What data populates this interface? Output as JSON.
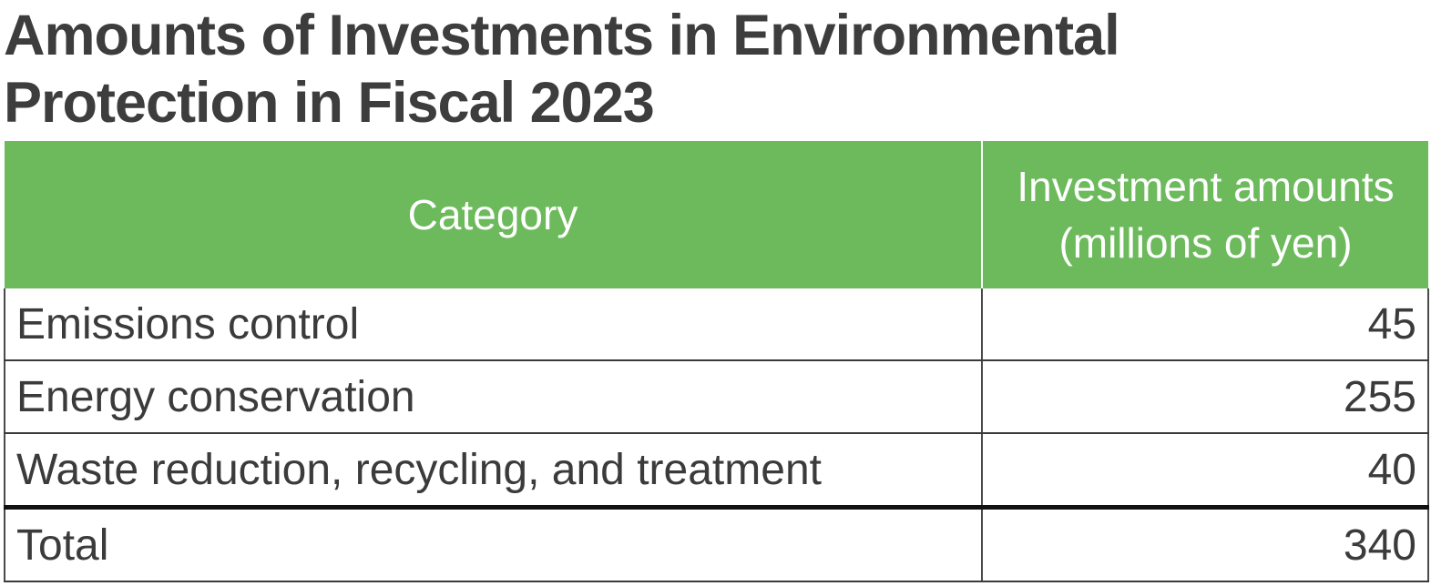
{
  "title": {
    "line1": "Amounts of Investments in Environmental",
    "line2": "Protection in Fiscal 2023"
  },
  "table": {
    "headers": {
      "category": "Category",
      "amount_line1": "Investment amounts",
      "amount_line2": "(millions of yen)"
    },
    "rows": [
      {
        "category": "Emissions control",
        "amount": "45"
      },
      {
        "category": "Energy conservation",
        "amount": "255"
      },
      {
        "category": "Waste reduction, recycling, and treatment",
        "amount": "40"
      }
    ],
    "total": {
      "label": "Total",
      "amount": "340"
    }
  },
  "colors": {
    "header_background": "#6cba5b",
    "header_text": "#ffffff",
    "body_text": "#3b3b3b"
  }
}
